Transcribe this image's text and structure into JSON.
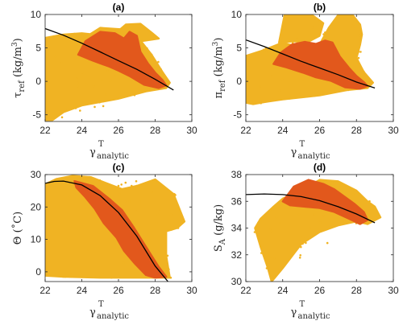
{
  "colors": {
    "background_cloud": "#F0B323",
    "foreground_cloud": "#E2581C",
    "fit_line": "#000000"
  },
  "chart_data": [
    {
      "type": "scatter",
      "panel": "(a)",
      "xlabel": "γ",
      "xlabel_sup": "T",
      "xlabel_sub": "analytic",
      "ylabel": "τ",
      "ylabel_sub": "ref",
      "ylabel_unit": " (kg/m",
      "ylabel_unit_sup": "3",
      "ylabel_unit_end": ")",
      "xlim": [
        22,
        30
      ],
      "ylim": [
        -6,
        10
      ],
      "xticks": [
        22,
        24,
        26,
        28,
        30
      ],
      "yticks": [
        -5,
        0,
        5,
        10
      ],
      "series": [
        {
          "role": "background",
          "color": "#F0B323",
          "polygon": [
            [
              22,
              -5.8
            ],
            [
              22,
              6.5
            ],
            [
              23,
              7.0
            ],
            [
              24,
              7.2
            ],
            [
              25,
              6.9
            ],
            [
              26,
              6.4
            ],
            [
              26.5,
              7.4
            ],
            [
              27,
              6.8
            ],
            [
              27.8,
              4.0
            ],
            [
              28.4,
              1.4
            ],
            [
              28.8,
              -0.2
            ],
            [
              28.6,
              -1.0
            ],
            [
              27.5,
              -1.5
            ],
            [
              26,
              -2.6
            ],
            [
              24,
              -3.6
            ],
            [
              23,
              -4.6
            ],
            [
              22.4,
              -5.8
            ]
          ],
          "extra": [
            [
              [
                24.2,
                6.6
              ],
              [
                25,
                8.0
              ],
              [
                26.1,
                7.8
              ],
              [
                26.4,
                8.5
              ],
              [
                27.2,
                8.6
              ],
              [
                27.8,
                7.3
              ],
              [
                28.2,
                6.4
              ],
              [
                27.2,
                6.0
              ],
              [
                26,
                6.6
              ],
              [
                24.8,
                6.3
              ]
            ]
          ]
        },
        {
          "role": "foreground",
          "color": "#E2581C",
          "polygon": [
            [
              23.8,
              4.0
            ],
            [
              24.2,
              6.0
            ],
            [
              25,
              7.4
            ],
            [
              25.8,
              7.2
            ],
            [
              26.3,
              6.4
            ],
            [
              26.6,
              7.4
            ],
            [
              27.0,
              6.8
            ],
            [
              27.2,
              4.4
            ],
            [
              27.6,
              2.7
            ],
            [
              28.0,
              1.3
            ],
            [
              28.4,
              0.2
            ],
            [
              28.6,
              -0.6
            ],
            [
              28.2,
              -1.0
            ],
            [
              27.4,
              -0.5
            ],
            [
              26.6,
              0.8
            ],
            [
              26.0,
              1.6
            ],
            [
              25.5,
              2.2
            ],
            [
              24.6,
              3.1
            ]
          ]
        },
        {
          "role": "fit",
          "color": "#000000",
          "x": [
            22,
            23,
            24,
            25,
            26,
            27,
            28,
            29
          ],
          "y": [
            7.9,
            6.9,
            5.7,
            4.4,
            3.1,
            1.8,
            0.3,
            -1.3
          ]
        }
      ]
    },
    {
      "type": "scatter",
      "panel": "(b)",
      "xlabel": "γ",
      "xlabel_sup": "T",
      "xlabel_sub": "analytic",
      "ylabel": "π",
      "ylabel_sub": "ref",
      "ylabel_unit": " (kg/m",
      "ylabel_unit_sup": "3",
      "ylabel_unit_end": ")",
      "xlim": [
        22,
        30
      ],
      "ylim": [
        -6,
        10
      ],
      "xticks": [
        22,
        24,
        26,
        28,
        30
      ],
      "yticks": [
        -5,
        0,
        5,
        10
      ],
      "series": [
        {
          "role": "background",
          "color": "#F0B323",
          "polygon": [
            [
              22,
              -3.2
            ],
            [
              22,
              3.8
            ],
            [
              23,
              4.7
            ],
            [
              24,
              5.8
            ],
            [
              25,
              5.0
            ],
            [
              26,
              5.5
            ],
            [
              26.5,
              8.0
            ],
            [
              27,
              9.9
            ],
            [
              27.8,
              9.9
            ],
            [
              28.2,
              8.5
            ],
            [
              28.3,
              7.0
            ],
            [
              28.2,
              5.5
            ],
            [
              28.0,
              3.5
            ],
            [
              28.4,
              1.4
            ],
            [
              28.9,
              -0.2
            ],
            [
              28.6,
              -1.0
            ],
            [
              27.5,
              -1.3
            ],
            [
              26,
              -2.1
            ],
            [
              24,
              -2.7
            ],
            [
              23,
              -3.1
            ],
            [
              22.4,
              -3.4
            ]
          ],
          "extra": [
            [
              [
                23.8,
                5.8
              ],
              [
                24.1,
                9.9
              ],
              [
                25.6,
                9.9
              ],
              [
                26.2,
                8.7
              ],
              [
                26.0,
                6.8
              ],
              [
                25.3,
                5.8
              ],
              [
                24.6,
                6.0
              ]
            ]
          ]
        },
        {
          "role": "foreground",
          "color": "#E2581C",
          "polygon": [
            [
              23.5,
              2.6
            ],
            [
              23.9,
              4.3
            ],
            [
              24.5,
              5.5
            ],
            [
              25.2,
              5.9
            ],
            [
              25.8,
              5.6
            ],
            [
              26.3,
              6.1
            ],
            [
              26.7,
              5.8
            ],
            [
              27.1,
              3.7
            ],
            [
              27.6,
              2.0
            ],
            [
              28.0,
              0.8
            ],
            [
              28.4,
              -0.1
            ],
            [
              28.6,
              -0.7
            ],
            [
              28.2,
              -1.1
            ],
            [
              27.4,
              -0.9
            ],
            [
              26.6,
              0.1
            ],
            [
              25.8,
              0.6
            ],
            [
              25.1,
              1.3
            ],
            [
              24.2,
              2.1
            ]
          ]
        },
        {
          "role": "fit",
          "color": "#000000",
          "x": [
            22,
            23,
            24,
            25,
            26,
            27,
            28,
            29
          ],
          "y": [
            6.2,
            5.2,
            4.1,
            3.0,
            2.0,
            1.0,
            -0.1,
            -1.0
          ]
        }
      ]
    },
    {
      "type": "scatter",
      "panel": "(c)",
      "xlabel": "γ",
      "xlabel_sup": "T",
      "xlabel_sub": "analytic",
      "ylabel": "Θ (˚C)",
      "xlim": [
        22,
        30
      ],
      "ylim": [
        -3,
        30
      ],
      "xticks": [
        22,
        24,
        26,
        28,
        30
      ],
      "yticks": [
        0,
        10,
        20,
        30
      ],
      "series": [
        {
          "role": "background",
          "color": "#F0B323",
          "polygon": [
            [
              22,
              -1.2
            ],
            [
              22,
              27.0
            ],
            [
              22.6,
              28.6
            ],
            [
              23.5,
              29.6
            ],
            [
              24.5,
              29.2
            ],
            [
              25.5,
              27.0
            ],
            [
              26.2,
              25.5
            ],
            [
              27,
              26.5
            ],
            [
              28,
              28.5
            ],
            [
              29,
              24.0
            ],
            [
              29.6,
              15.5
            ],
            [
              29.2,
              13.5
            ],
            [
              28.6,
              12.5
            ],
            [
              28.6,
              5.0
            ],
            [
              28.8,
              -1.8
            ],
            [
              27,
              -1.8
            ],
            [
              25,
              -1.8
            ],
            [
              23,
              -1.5
            ]
          ]
        },
        {
          "role": "foreground",
          "color": "#E2581C",
          "polygon": [
            [
              23.6,
              28.0
            ],
            [
              24.6,
              26.5
            ],
            [
              25.5,
              22.5
            ],
            [
              26.2,
              19.0
            ],
            [
              26.8,
              14.0
            ],
            [
              27.3,
              9.5
            ],
            [
              27.8,
              5.0
            ],
            [
              28.2,
              1.5
            ],
            [
              28.6,
              -1.5
            ],
            [
              28.0,
              -1.8
            ],
            [
              27.5,
              -1.0
            ],
            [
              26.9,
              2.5
            ],
            [
              26.3,
              6.5
            ],
            [
              25.9,
              10.5
            ],
            [
              25.2,
              15.0
            ],
            [
              24.7,
              19.5
            ],
            [
              24.2,
              23.0
            ],
            [
              23.7,
              26.0
            ]
          ]
        },
        {
          "role": "fit",
          "color": "#000000",
          "x": [
            22,
            22.5,
            23,
            24,
            25,
            26,
            27,
            28,
            28.7
          ],
          "y": [
            27.3,
            27.9,
            28.0,
            26.8,
            23.5,
            18.3,
            11.0,
            1.8,
            -3.0
          ]
        }
      ]
    },
    {
      "type": "scatter",
      "panel": "(d)",
      "xlabel": "γ",
      "xlabel_sup": "T",
      "xlabel_sub": "analytic",
      "ylabel": "S",
      "ylabel_sub": "A",
      "ylabel_unit": " (g/kg)",
      "xlim": [
        22,
        30
      ],
      "ylim": [
        30,
        38
      ],
      "xticks": [
        22,
        24,
        26,
        28,
        30
      ],
      "yticks": [
        30,
        32,
        34,
        36,
        38
      ],
      "series": [
        {
          "role": "background",
          "color": "#F0B323",
          "polygon": [
            [
              23.4,
              30.0
            ],
            [
              23.2,
              31.0
            ],
            [
              22.8,
              32.6
            ],
            [
              22.5,
              34.0
            ],
            [
              22.8,
              34.7
            ],
            [
              23.5,
              35.6
            ],
            [
              24.0,
              36.2
            ],
            [
              25,
              36.8
            ],
            [
              26,
              37.6
            ],
            [
              27,
              37.5
            ],
            [
              28,
              36.8
            ],
            [
              28.6,
              36.0
            ],
            [
              29.0,
              35.6
            ],
            [
              29.3,
              34.8
            ],
            [
              28.6,
              34.3
            ],
            [
              28.0,
              34.5
            ],
            [
              27.0,
              34.2
            ],
            [
              26.0,
              33.7
            ],
            [
              25.0,
              32.8
            ],
            [
              24.0,
              31.0
            ]
          ]
        },
        {
          "role": "foreground",
          "color": "#E2581C",
          "polygon": [
            [
              24.0,
              36.0
            ],
            [
              24.6,
              37.1
            ],
            [
              25.4,
              37.6
            ],
            [
              26.2,
              37.3
            ],
            [
              26.8,
              36.9
            ],
            [
              27.3,
              36.4
            ],
            [
              27.9,
              35.8
            ],
            [
              28.4,
              35.2
            ],
            [
              28.6,
              34.6
            ],
            [
              28.2,
              34.3
            ],
            [
              27.6,
              34.7
            ],
            [
              26.8,
              35.2
            ],
            [
              26.0,
              35.5
            ],
            [
              25.2,
              35.6
            ],
            [
              24.4,
              35.7
            ]
          ]
        },
        {
          "role": "fit",
          "color": "#000000",
          "x": [
            22,
            23,
            24,
            25,
            26,
            27,
            28,
            29
          ],
          "y": [
            36.5,
            36.55,
            36.5,
            36.35,
            36.05,
            35.6,
            35.05,
            34.4
          ]
        }
      ]
    }
  ]
}
